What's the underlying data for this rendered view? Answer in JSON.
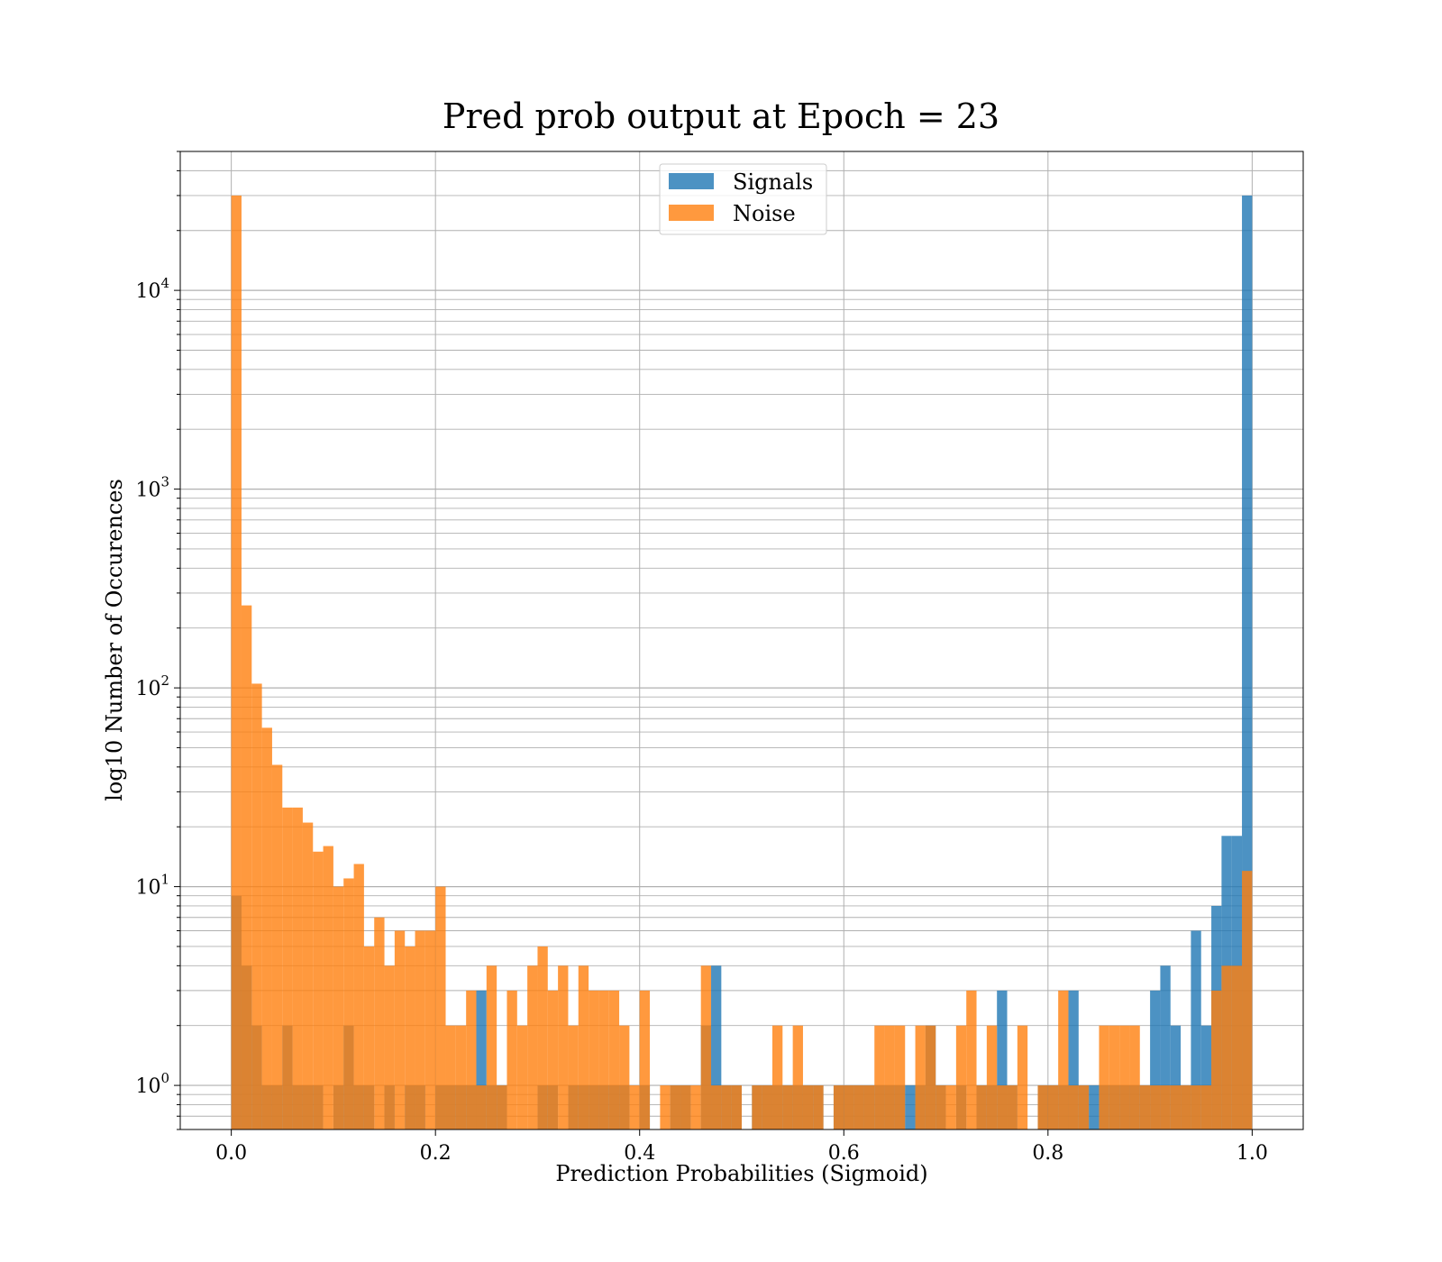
{
  "chart_data": {
    "type": "bar",
    "title": "Pred prob output at Epoch = 23",
    "xlabel": "Prediction Probabilities (Sigmoid)",
    "ylabel": "log10 Number of Occurences",
    "x_scale": "linear",
    "y_scale": "log",
    "xlim": [
      -0.05,
      1.05
    ],
    "ylim": [
      0.6,
      50000
    ],
    "x_ticks": [
      0.0,
      0.2,
      0.4,
      0.6,
      0.8,
      1.0
    ],
    "x_tick_labels": [
      "0.0",
      "0.2",
      "0.4",
      "0.6",
      "0.8",
      "1.0"
    ],
    "y_ticks": [
      1,
      10,
      100,
      1000,
      10000
    ],
    "y_tick_bases": [
      "10",
      "10",
      "10",
      "10",
      "10"
    ],
    "y_tick_exps": [
      "0",
      "1",
      "2",
      "3",
      "4"
    ],
    "grid": true,
    "legend_placement": "upper-center",
    "bins": 100,
    "bin_range": [
      0,
      1
    ],
    "series": [
      {
        "name": "Signals",
        "color": "#1f77b4",
        "values": [
          9,
          4,
          2,
          1,
          1,
          2,
          1,
          1,
          1,
          0,
          1,
          2,
          1,
          1,
          0,
          1,
          0,
          1,
          1,
          0,
          1,
          1,
          1,
          1,
          3,
          1,
          1,
          0,
          0,
          0,
          1,
          1,
          0,
          1,
          1,
          1,
          1,
          1,
          1,
          0,
          1,
          0,
          0,
          1,
          1,
          0,
          2,
          4,
          1,
          1,
          0,
          1,
          1,
          1,
          1,
          1,
          1,
          1,
          0,
          1,
          1,
          1,
          1,
          1,
          1,
          1,
          1,
          1,
          2,
          1,
          0,
          1,
          0,
          1,
          1,
          3,
          1,
          0,
          0,
          1,
          1,
          1,
          3,
          1,
          1,
          1,
          1,
          1,
          1,
          1,
          3,
          4,
          2,
          1,
          6,
          2,
          8,
          18,
          18,
          30000
        ]
      },
      {
        "name": "Noise",
        "color": "#ff7f0e",
        "values": [
          30000,
          260,
          105,
          63,
          41,
          25,
          25,
          21,
          15,
          16,
          10,
          11,
          13,
          5,
          7,
          4,
          6,
          5,
          6,
          6,
          10,
          2,
          2,
          3,
          1,
          4,
          1,
          3,
          2,
          4,
          5,
          3,
          4,
          2,
          4,
          3,
          3,
          3,
          2,
          1,
          3,
          0,
          1,
          1,
          1,
          1,
          4,
          1,
          1,
          1,
          0,
          1,
          1,
          2,
          1,
          2,
          1,
          1,
          0,
          1,
          1,
          1,
          1,
          2,
          2,
          2,
          0,
          2,
          2,
          1,
          1,
          2,
          3,
          1,
          2,
          1,
          1,
          2,
          0,
          1,
          1,
          3,
          1,
          1,
          0,
          2,
          2,
          2,
          2,
          1,
          1,
          1,
          1,
          1,
          1,
          1,
          3,
          4,
          4,
          12
        ]
      }
    ]
  }
}
